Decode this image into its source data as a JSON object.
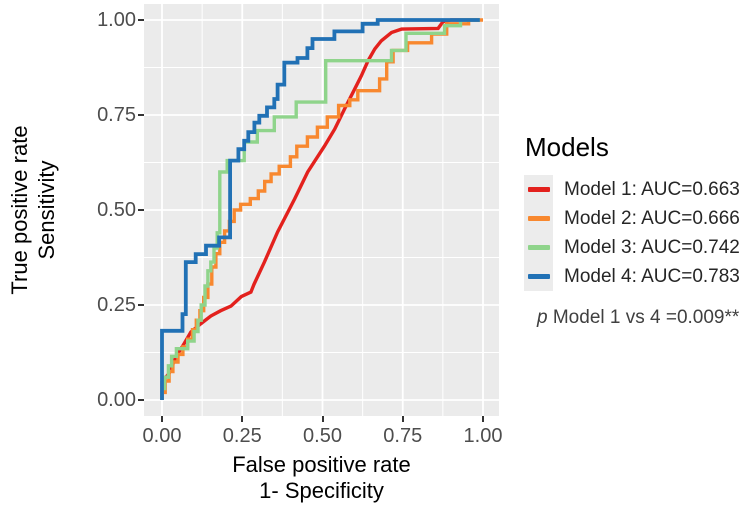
{
  "axes": {
    "x": {
      "title_line1": "False positive rate",
      "title_line2": "1- Specificity",
      "ticks": [
        "0.00",
        "0.25",
        "0.50",
        "0.75",
        "1.00"
      ],
      "tick_values": [
        0,
        0.25,
        0.5,
        0.75,
        1
      ]
    },
    "y": {
      "title_line1": "True positive rate",
      "title_line2": "Sensitivity",
      "ticks": [
        "0.00",
        "0.25",
        "0.50",
        "0.75",
        "1.00"
      ],
      "tick_values": [
        0,
        0.25,
        0.5,
        0.75,
        1
      ]
    }
  },
  "legend": {
    "title": "Models",
    "items": [
      {
        "label": "Model 1: AUC=0.663",
        "color": "#e3211d"
      },
      {
        "label": "Model 2: AUC=0.666",
        "color": "#f8882f"
      },
      {
        "label": "Model 3: AUC=0.742",
        "color": "#8fd48b"
      },
      {
        "label": "Model 4: AUC=0.783",
        "color": "#2171b5"
      }
    ],
    "p_italic": "p",
    "p_text": " Model 1 vs 4 =0.009**"
  },
  "style": {
    "panel_bg": "#ebebeb",
    "grid_color": "#ffffff",
    "tick_color": "#333333",
    "tick_label_color": "#4d4d4d"
  },
  "chart_data": {
    "type": "line",
    "subtype": "roc-step-curves",
    "title": "",
    "xlabel": "False positive rate / 1- Specificity",
    "ylabel": "True positive rate / Sensitivity",
    "xlim": [
      0,
      1
    ],
    "ylim": [
      0,
      1
    ],
    "grid": "on",
    "legend_position": "right",
    "minor_gridlines": [
      0.125,
      0.375,
      0.625,
      0.875
    ],
    "major_gridlines": [
      0,
      0.25,
      0.5,
      0.75,
      1
    ],
    "annotation": "p Model 1 vs 4 =0.009**",
    "series": [
      {
        "name": "Model 1",
        "auc": 0.663,
        "color": "#e3211d",
        "width": 3.4,
        "points": [
          [
            0,
            0
          ],
          [
            0,
            0.048
          ],
          [
            0.022,
            0.07
          ],
          [
            0.043,
            0.113
          ],
          [
            0.07,
            0.15
          ],
          [
            0.09,
            0.179
          ],
          [
            0.12,
            0.2
          ],
          [
            0.152,
            0.221
          ],
          [
            0.183,
            0.235
          ],
          [
            0.215,
            0.247
          ],
          [
            0.247,
            0.272
          ],
          [
            0.277,
            0.284
          ],
          [
            0.287,
            0.305
          ],
          [
            0.319,
            0.363
          ],
          [
            0.36,
            0.442
          ],
          [
            0.413,
            0.529
          ],
          [
            0.454,
            0.6
          ],
          [
            0.506,
            0.668
          ],
          [
            0.538,
            0.713
          ],
          [
            0.569,
            0.766
          ],
          [
            0.6,
            0.818
          ],
          [
            0.621,
            0.853
          ],
          [
            0.642,
            0.893
          ],
          [
            0.663,
            0.924
          ],
          [
            0.683,
            0.945
          ],
          [
            0.715,
            0.967
          ],
          [
            0.746,
            0.976
          ],
          [
            0.86,
            0.978
          ],
          [
            0.875,
            0.995
          ],
          [
            0.9,
            1
          ],
          [
            0.99,
            1
          ]
        ]
      },
      {
        "name": "Model 2",
        "auc": 0.666,
        "color": "#f8882f",
        "width": 3.4,
        "points": [
          [
            0,
            0
          ],
          [
            0,
            0.02
          ],
          [
            0.01,
            0.02
          ],
          [
            0.01,
            0.05
          ],
          [
            0.022,
            0.05
          ],
          [
            0.022,
            0.075
          ],
          [
            0.034,
            0.075
          ],
          [
            0.034,
            0.1
          ],
          [
            0.05,
            0.1
          ],
          [
            0.05,
            0.12
          ],
          [
            0.065,
            0.12
          ],
          [
            0.065,
            0.14
          ],
          [
            0.08,
            0.14
          ],
          [
            0.08,
            0.16
          ],
          [
            0.095,
            0.16
          ],
          [
            0.095,
            0.185
          ],
          [
            0.107,
            0.185
          ],
          [
            0.107,
            0.21
          ],
          [
            0.118,
            0.21
          ],
          [
            0.118,
            0.235
          ],
          [
            0.13,
            0.235
          ],
          [
            0.13,
            0.27
          ],
          [
            0.143,
            0.27
          ],
          [
            0.143,
            0.305
          ],
          [
            0.155,
            0.305
          ],
          [
            0.155,
            0.35
          ],
          [
            0.168,
            0.35
          ],
          [
            0.168,
            0.385
          ],
          [
            0.18,
            0.385
          ],
          [
            0.18,
            0.415
          ],
          [
            0.195,
            0.415
          ],
          [
            0.195,
            0.445
          ],
          [
            0.21,
            0.445
          ],
          [
            0.21,
            0.47
          ],
          [
            0.225,
            0.47
          ],
          [
            0.225,
            0.5
          ],
          [
            0.245,
            0.5
          ],
          [
            0.245,
            0.515
          ],
          [
            0.275,
            0.515
          ],
          [
            0.275,
            0.53
          ],
          [
            0.3,
            0.53
          ],
          [
            0.3,
            0.55
          ],
          [
            0.32,
            0.55
          ],
          [
            0.32,
            0.575
          ],
          [
            0.34,
            0.575
          ],
          [
            0.34,
            0.595
          ],
          [
            0.365,
            0.595
          ],
          [
            0.365,
            0.615
          ],
          [
            0.4,
            0.615
          ],
          [
            0.4,
            0.64
          ],
          [
            0.42,
            0.64
          ],
          [
            0.42,
            0.668
          ],
          [
            0.453,
            0.668
          ],
          [
            0.453,
            0.692
          ],
          [
            0.484,
            0.692
          ],
          [
            0.484,
            0.718
          ],
          [
            0.515,
            0.718
          ],
          [
            0.515,
            0.745
          ],
          [
            0.55,
            0.745
          ],
          [
            0.55,
            0.775
          ],
          [
            0.585,
            0.775
          ],
          [
            0.585,
            0.79
          ],
          [
            0.61,
            0.79
          ],
          [
            0.61,
            0.814
          ],
          [
            0.678,
            0.814
          ],
          [
            0.678,
            0.845
          ],
          [
            0.7,
            0.845
          ],
          [
            0.7,
            0.89
          ],
          [
            0.72,
            0.89
          ],
          [
            0.72,
            0.92
          ],
          [
            0.765,
            0.92
          ],
          [
            0.765,
            0.94
          ],
          [
            0.84,
            0.94
          ],
          [
            0.84,
            0.963
          ],
          [
            0.887,
            0.963
          ],
          [
            0.887,
            0.99
          ],
          [
            0.955,
            0.99
          ],
          [
            0.955,
            1
          ],
          [
            1,
            1
          ]
        ]
      },
      {
        "name": "Model 3",
        "auc": 0.742,
        "color": "#8fd48b",
        "width": 3.4,
        "points": [
          [
            0,
            0
          ],
          [
            0,
            0.03
          ],
          [
            0.008,
            0.03
          ],
          [
            0.008,
            0.06
          ],
          [
            0.02,
            0.06
          ],
          [
            0.02,
            0.09
          ],
          [
            0.03,
            0.09
          ],
          [
            0.03,
            0.115
          ],
          [
            0.045,
            0.115
          ],
          [
            0.045,
            0.135
          ],
          [
            0.08,
            0.135
          ],
          [
            0.08,
            0.155
          ],
          [
            0.1,
            0.155
          ],
          [
            0.1,
            0.18
          ],
          [
            0.112,
            0.18
          ],
          [
            0.112,
            0.21
          ],
          [
            0.122,
            0.21
          ],
          [
            0.122,
            0.25
          ],
          [
            0.134,
            0.25
          ],
          [
            0.134,
            0.3
          ],
          [
            0.143,
            0.3
          ],
          [
            0.143,
            0.34
          ],
          [
            0.152,
            0.34
          ],
          [
            0.152,
            0.363
          ],
          [
            0.162,
            0.363
          ],
          [
            0.162,
            0.4
          ],
          [
            0.172,
            0.4
          ],
          [
            0.172,
            0.44
          ],
          [
            0.18,
            0.44
          ],
          [
            0.18,
            0.6
          ],
          [
            0.203,
            0.6
          ],
          [
            0.203,
            0.63
          ],
          [
            0.256,
            0.63
          ],
          [
            0.256,
            0.679
          ],
          [
            0.297,
            0.679
          ],
          [
            0.297,
            0.709
          ],
          [
            0.35,
            0.709
          ],
          [
            0.35,
            0.745
          ],
          [
            0.418,
            0.745
          ],
          [
            0.418,
            0.784
          ],
          [
            0.51,
            0.784
          ],
          [
            0.51,
            0.893
          ],
          [
            0.715,
            0.893
          ],
          [
            0.715,
            0.92
          ],
          [
            0.76,
            0.92
          ],
          [
            0.76,
            0.965
          ],
          [
            0.88,
            0.965
          ],
          [
            0.88,
            0.985
          ],
          [
            0.93,
            0.985
          ],
          [
            0.93,
            1
          ],
          [
            0.99,
            1
          ]
        ]
      },
      {
        "name": "Model 4",
        "auc": 0.783,
        "color": "#2171b5",
        "width": 3.8,
        "points": [
          [
            0,
            0
          ],
          [
            0,
            0.182
          ],
          [
            0.064,
            0.182
          ],
          [
            0.064,
            0.226
          ],
          [
            0.074,
            0.226
          ],
          [
            0.074,
            0.363
          ],
          [
            0.105,
            0.363
          ],
          [
            0.105,
            0.384
          ],
          [
            0.137,
            0.384
          ],
          [
            0.137,
            0.406
          ],
          [
            0.178,
            0.406
          ],
          [
            0.178,
            0.428
          ],
          [
            0.212,
            0.428
          ],
          [
            0.212,
            0.63
          ],
          [
            0.238,
            0.63
          ],
          [
            0.238,
            0.66
          ],
          [
            0.256,
            0.66
          ],
          [
            0.256,
            0.682
          ],
          [
            0.269,
            0.682
          ],
          [
            0.269,
            0.705
          ],
          [
            0.288,
            0.705
          ],
          [
            0.288,
            0.73
          ],
          [
            0.303,
            0.73
          ],
          [
            0.303,
            0.748
          ],
          [
            0.327,
            0.748
          ],
          [
            0.327,
            0.77
          ],
          [
            0.35,
            0.77
          ],
          [
            0.35,
            0.792
          ],
          [
            0.36,
            0.792
          ],
          [
            0.36,
            0.83
          ],
          [
            0.381,
            0.83
          ],
          [
            0.381,
            0.888
          ],
          [
            0.422,
            0.888
          ],
          [
            0.422,
            0.9
          ],
          [
            0.453,
            0.9
          ],
          [
            0.453,
            0.926
          ],
          [
            0.469,
            0.926
          ],
          [
            0.469,
            0.95
          ],
          [
            0.537,
            0.95
          ],
          [
            0.537,
            0.97
          ],
          [
            0.625,
            0.97
          ],
          [
            0.625,
            0.99
          ],
          [
            0.672,
            0.99
          ],
          [
            0.672,
            1
          ],
          [
            0.99,
            1
          ]
        ]
      }
    ]
  }
}
